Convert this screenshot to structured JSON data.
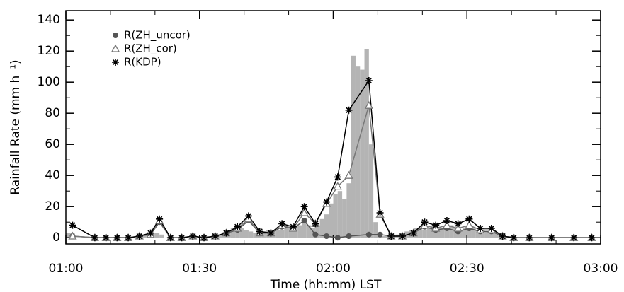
{
  "chart_data": {
    "type": "line",
    "x_label": "Time (hh:mm) LST",
    "y_label": "Rainfall Rate (mm h⁻¹)",
    "xlim": [
      0,
      120
    ],
    "xticks": [
      {
        "value": 0,
        "label": "01:00"
      },
      {
        "value": 30,
        "label": "01:30"
      },
      {
        "value": 60,
        "label": "02:00"
      },
      {
        "value": 90,
        "label": "02:30"
      },
      {
        "value": 120,
        "label": "03:00"
      }
    ],
    "xminorticks": [
      10,
      20,
      40,
      50,
      70,
      80,
      100,
      110
    ],
    "ylim": [
      -4,
      146
    ],
    "yticks": [
      0,
      20,
      40,
      60,
      80,
      100,
      120,
      140
    ],
    "yminorticks": [
      10,
      30,
      50,
      70,
      90,
      110,
      130
    ],
    "legend": "upper left",
    "histogram": {
      "color": "#b4b4b4",
      "bins": [
        0,
        1,
        2,
        3,
        4,
        5,
        6,
        7,
        8,
        9,
        10,
        11,
        12,
        13,
        14,
        15,
        16,
        17,
        18,
        19,
        20,
        21,
        22,
        23,
        24,
        25,
        26,
        27,
        28,
        29,
        30,
        31,
        32,
        33,
        34,
        35,
        36,
        37,
        38,
        39,
        40,
        41,
        42,
        43,
        44,
        45,
        46,
        47,
        48,
        49,
        50,
        51,
        52,
        53,
        54,
        55,
        56,
        57,
        58,
        59,
        60,
        61,
        62,
        63,
        64,
        65,
        66,
        67,
        68,
        69,
        70,
        71,
        72,
        73,
        74,
        75,
        76,
        77,
        78,
        79,
        80,
        81,
        82,
        83,
        84,
        85,
        86,
        87,
        88,
        89,
        90,
        91,
        92,
        93,
        94,
        95,
        96,
        97,
        98,
        99,
        100
      ],
      "counts": [
        3,
        3,
        0,
        0,
        0,
        0,
        0,
        0,
        0,
        0,
        0,
        0,
        0,
        0,
        0,
        0,
        0,
        2,
        2,
        3,
        3,
        2,
        0,
        0,
        0,
        0,
        0,
        0,
        0,
        0,
        1,
        1,
        1,
        1,
        2,
        2,
        4,
        6,
        8,
        6,
        5,
        4,
        3,
        3,
        4,
        5,
        4,
        5,
        5,
        6,
        6,
        7,
        8,
        12,
        8,
        6,
        8,
        12,
        15,
        22,
        28,
        30,
        25,
        35,
        117,
        110,
        108,
        121,
        60,
        10,
        3,
        1,
        1,
        1,
        2,
        3,
        4,
        5,
        6,
        6,
        5,
        6,
        8,
        7,
        6,
        7,
        8,
        6,
        5,
        6,
        7,
        6,
        5,
        5,
        4,
        4,
        3,
        2,
        1,
        1
      ]
    },
    "x": [
      1.5,
      6.5,
      9,
      11.5,
      14,
      16.5,
      19,
      21,
      23.5,
      26,
      28.5,
      31,
      33.5,
      36,
      38.5,
      41,
      43.5,
      46,
      48.5,
      51,
      53.5,
      56,
      58.5,
      61,
      63.5,
      68,
      70.5,
      73,
      75.5,
      78,
      80.5,
      83,
      85.5,
      88,
      90.5,
      93,
      95.5,
      98,
      100.5,
      104,
      109,
      114,
      118
    ],
    "series": [
      {
        "name": "R(ZH_uncor)",
        "color": "#555555",
        "marker": "circle",
        "values": [
          1,
          0,
          0,
          0,
          0,
          1,
          2,
          10,
          0,
          0,
          1,
          0,
          1,
          3,
          5,
          11,
          3,
          3,
          7,
          6,
          11,
          2,
          1,
          0,
          1,
          2,
          2,
          1,
          1,
          3,
          7,
          5,
          6,
          4,
          6,
          4,
          4,
          1,
          0,
          0,
          0,
          0,
          0
        ]
      },
      {
        "name": "R(ZH_cor)",
        "color": "#777777",
        "marker": "triangle",
        "values": [
          1,
          0,
          0,
          0,
          0,
          1,
          2,
          11,
          0,
          0,
          1,
          0,
          1,
          3,
          6,
          12,
          3,
          3,
          8,
          6,
          16,
          9,
          22,
          33,
          40,
          85,
          15,
          1,
          1,
          3,
          8,
          6,
          8,
          6,
          8,
          5,
          5,
          1,
          0,
          0,
          0,
          0,
          0
        ]
      },
      {
        "name": "R(KDP)",
        "color": "#000000",
        "marker": "asterisk",
        "values": [
          8,
          0,
          0,
          0,
          0,
          1,
          3,
          12,
          0,
          0,
          1,
          0,
          1,
          3,
          7,
          14,
          4,
          3,
          9,
          7,
          20,
          9,
          23,
          39,
          82,
          101,
          16,
          1,
          1,
          3,
          10,
          8,
          11,
          9,
          12,
          6,
          6,
          1,
          0,
          0,
          0,
          0,
          0
        ]
      }
    ]
  }
}
